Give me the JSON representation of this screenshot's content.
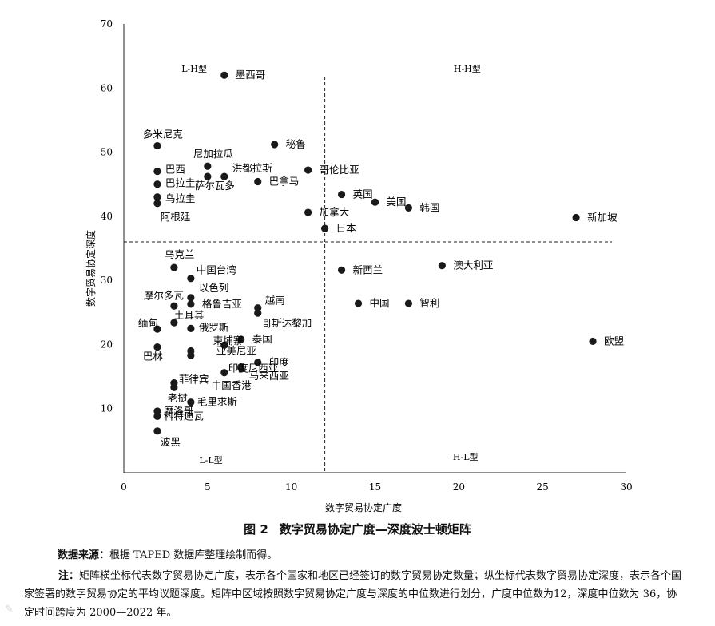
{
  "chart_data": {
    "type": "scatter",
    "title": "",
    "xlabel": "数字贸易协定广度",
    "ylabel": "数字贸易协定深度",
    "xlim": [
      0,
      30
    ],
    "ylim": [
      0,
      70
    ],
    "xticks": [
      0,
      5,
      10,
      15,
      20,
      25,
      30
    ],
    "yticks": [
      10,
      20,
      30,
      40,
      50,
      60,
      70
    ],
    "grid": false,
    "median_lines": {
      "x": 12,
      "y": 36
    },
    "quadrant_labels": [
      {
        "text": "L-H型",
        "x": 4.2,
        "y": 62.5
      },
      {
        "text": "H-H型",
        "x": 20.5,
        "y": 62.5
      },
      {
        "text": "L-L型",
        "x": 5.2,
        "y": 1.5
      },
      {
        "text": "H-L型",
        "x": 20.4,
        "y": 2.0
      }
    ],
    "points": [
      {
        "label": "墨西哥",
        "x": 6.0,
        "y": 62.0
      },
      {
        "label": "多米尼克",
        "x": 2.0,
        "y": 51.0
      },
      {
        "label": "秘鲁",
        "x": 9.0,
        "y": 51.2
      },
      {
        "label": "尼加拉瓜",
        "x": 5.0,
        "y": 47.8
      },
      {
        "label": "洪都拉斯",
        "x": 6.0,
        "y": 46.2
      },
      {
        "label": "萨尔瓦多",
        "x": 5.0,
        "y": 46.2
      },
      {
        "label": "巴西",
        "x": 2.0,
        "y": 47.0
      },
      {
        "label": "哥伦比亚",
        "x": 11.0,
        "y": 47.2
      },
      {
        "label": "巴拿马",
        "x": 8.0,
        "y": 45.4
      },
      {
        "label": "巴拉圭",
        "x": 2.0,
        "y": 45.0
      },
      {
        "label": "英国",
        "x": 13.0,
        "y": 43.4
      },
      {
        "label": "乌拉圭",
        "x": 2.0,
        "y": 43.0
      },
      {
        "label": "美国",
        "x": 15.0,
        "y": 42.2
      },
      {
        "label": "阿根廷",
        "x": 2.0,
        "y": 42.0
      },
      {
        "label": "韩国",
        "x": 17.0,
        "y": 41.3
      },
      {
        "label": "加拿大",
        "x": 11.0,
        "y": 40.6
      },
      {
        "label": "新加坡",
        "x": 27.0,
        "y": 39.8
      },
      {
        "label": "日本",
        "x": 12.0,
        "y": 38.1
      },
      {
        "label": "澳大利亚",
        "x": 19.0,
        "y": 32.3
      },
      {
        "label": "乌克兰",
        "x": 3.0,
        "y": 32.0
      },
      {
        "label": "新西兰",
        "x": 13.0,
        "y": 31.6
      },
      {
        "label": "中国台湾",
        "x": 4.0,
        "y": 30.3
      },
      {
        "label": "以色列",
        "x": 4.0,
        "y": 27.3
      },
      {
        "label": "摩尔多瓦",
        "x": 3.0,
        "y": 26.0
      },
      {
        "label": "格鲁吉亚",
        "x": 4.0,
        "y": 26.3
      },
      {
        "label": "越南",
        "x": 8.0,
        "y": 25.7
      },
      {
        "label": "哥斯达黎加",
        "x": 8.0,
        "y": 24.9
      },
      {
        "label": "中国",
        "x": 14.0,
        "y": 26.4
      },
      {
        "label": "智利",
        "x": 17.0,
        "y": 26.4
      },
      {
        "label": "土耳其",
        "x": 3.0,
        "y": 23.4
      },
      {
        "label": "缅甸",
        "x": 2.0,
        "y": 22.4
      },
      {
        "label": "俄罗斯",
        "x": 4.0,
        "y": 22.5
      },
      {
        "label": "泰国",
        "x": 7.0,
        "y": 20.8
      },
      {
        "label": "欧盟",
        "x": 28.0,
        "y": 20.5
      },
      {
        "label": "柬埔寨",
        "x": 6.0,
        "y": 19.9
      },
      {
        "label": "巴林",
        "x": 2.0,
        "y": 19.6
      },
      {
        "label": "亚美尼亚",
        "x": 4.0,
        "y": 19.0
      },
      {
        "label": "东盟",
        "x": 4.0,
        "y": 18.3
      },
      {
        "label": "印度",
        "x": 8.0,
        "y": 17.2
      },
      {
        "label": "印度尼西亚",
        "x": 7.0,
        "y": 16.5
      },
      {
        "label": "中国香港",
        "x": 6.0,
        "y": 15.6
      },
      {
        "label": "马来西亚",
        "x": 7.0,
        "y": 16.3
      },
      {
        "label": "菲律宾",
        "x": 3.0,
        "y": 14.0
      },
      {
        "label": "老挝",
        "x": 3.0,
        "y": 13.3
      },
      {
        "label": "毛里求斯",
        "x": 4.0,
        "y": 11.0
      },
      {
        "label": "摩洛哥",
        "x": 2.0,
        "y": 9.6
      },
      {
        "label": "科特迪瓦",
        "x": 2.0,
        "y": 8.8
      },
      {
        "label": "波黑",
        "x": 2.0,
        "y": 6.5
      }
    ]
  },
  "caption": {
    "number": "图 2",
    "title": "数字贸易协定广度—深度波士顿矩阵"
  },
  "source": {
    "label": "数据来源：",
    "text": "根据 TAPED 数据库整理绘制而得。"
  },
  "note": {
    "label": "注：",
    "text": "矩阵横坐标代表数字贸易协定广度，表示各个国家和地区已经签订的数字贸易协定数量；纵坐标代表数字贸易协定深度，表示各个国家签署的数字贸易协定的平均议题深度。矩阵中区域按照数字贸易协定广度与深度的中位数进行划分，广度中位数为12，深度中位数为 36，协定时间跨度为 2000—2022 年。"
  }
}
